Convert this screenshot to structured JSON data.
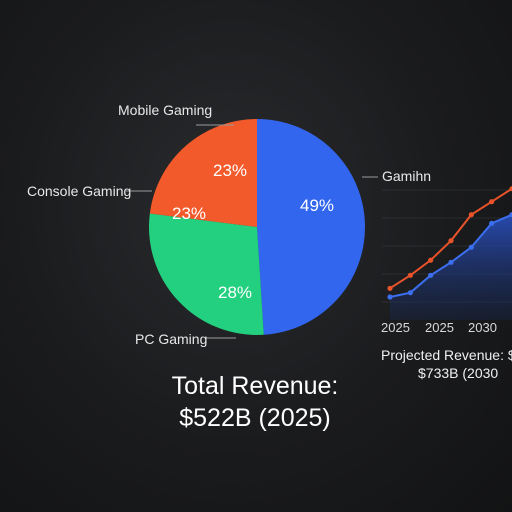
{
  "chart_data": [
    {
      "type": "pie",
      "categories": [
        "Mobile Gaming",
        "Console Gaming",
        "PC Gaming"
      ],
      "slice_labels": [
        "49%",
        "23%",
        "28%"
      ],
      "values": [
        49,
        23,
        28
      ],
      "extra_label": "23%",
      "colors": [
        "#3366ee",
        "#f25a2b",
        "#23d07f"
      ],
      "total_line1": "Total Revenue:",
      "total_line2": "$522B (2025)"
    },
    {
      "type": "line",
      "series_label": "Gamihn",
      "x_ticks": [
        "2025",
        "2025",
        "2030"
      ],
      "series": [
        {
          "color": "#e8532a",
          "values": [
            300,
            360,
            430,
            520,
            640,
            700,
            760
          ]
        },
        {
          "color": "#3b6ff0",
          "values": [
            260,
            280,
            360,
            420,
            490,
            600,
            640
          ]
        }
      ],
      "projected_line1": "Projected Revenue: $",
      "projected_line2": "$733B (2030"
    }
  ]
}
